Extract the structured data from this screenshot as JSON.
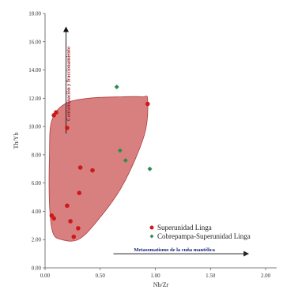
{
  "chart_data": {
    "type": "scatter",
    "xlabel": "Nb/Zr",
    "ylabel": "Th/Yb",
    "xlim": [
      0,
      2.1
    ],
    "ylim": [
      0,
      18
    ],
    "x_ticks": [
      "0.00",
      "0.50",
      "1.00",
      "1.50",
      "2.00"
    ],
    "y_ticks": [
      "0.00",
      "2.00",
      "4.00",
      "6.00",
      "8.00",
      "10.00",
      "12.00",
      "14.00",
      "16.00",
      "18.00"
    ],
    "grid": false,
    "legend_position": "bottom-right",
    "series": [
      {
        "name": "Superunidad Linga",
        "color": "#cc1a1a",
        "marker": "circle",
        "points": [
          {
            "x": 0.08,
            "y": 10.8
          },
          {
            "x": 0.1,
            "y": 11.0
          },
          {
            "x": 0.2,
            "y": 9.9
          },
          {
            "x": 0.06,
            "y": 3.7
          },
          {
            "x": 0.08,
            "y": 3.5
          },
          {
            "x": 0.2,
            "y": 4.4
          },
          {
            "x": 0.23,
            "y": 3.3
          },
          {
            "x": 0.3,
            "y": 2.8
          },
          {
            "x": 0.26,
            "y": 2.2
          },
          {
            "x": 0.31,
            "y": 5.3
          },
          {
            "x": 0.32,
            "y": 7.1
          },
          {
            "x": 0.43,
            "y": 6.9
          },
          {
            "x": 0.93,
            "y": 11.6
          }
        ]
      },
      {
        "name": "Cobrepampa-Superunidad Linga",
        "color": "#2e8b57",
        "marker": "diamond",
        "points": [
          {
            "x": 0.65,
            "y": 12.8
          },
          {
            "x": 0.68,
            "y": 8.3
          },
          {
            "x": 0.73,
            "y": 7.6
          },
          {
            "x": 0.95,
            "y": 7.0
          }
        ]
      }
    ],
    "field": {
      "fill": "#cd5c5c",
      "points": [
        {
          "x": 0.06,
          "y": 10.4
        },
        {
          "x": 0.18,
          "y": 11.6
        },
        {
          "x": 0.4,
          "y": 12.0
        },
        {
          "x": 0.7,
          "y": 12.1
        },
        {
          "x": 0.88,
          "y": 12.1
        },
        {
          "x": 0.93,
          "y": 11.9
        },
        {
          "x": 0.9,
          "y": 9.4
        },
        {
          "x": 0.7,
          "y": 5.8
        },
        {
          "x": 0.46,
          "y": 3.2
        },
        {
          "x": 0.3,
          "y": 2.0
        },
        {
          "x": 0.15,
          "y": 2.0
        },
        {
          "x": 0.07,
          "y": 2.5
        },
        {
          "x": 0.04,
          "y": 4.5
        },
        {
          "x": 0.04,
          "y": 8.0
        }
      ]
    },
    "annotations": [
      {
        "text": "Contaminación y fraccionamiento",
        "color": "#9b111e",
        "from": {
          "x": 0.19,
          "y": 9.5
        },
        "to": {
          "x": 0.19,
          "y": 17.0
        },
        "orientation": "vertical"
      },
      {
        "text": "Metasomatismo de la cuña mantélica",
        "color": "#1a237e",
        "from": {
          "x": 0.62,
          "y": 1.0
        },
        "to": {
          "x": 1.84,
          "y": 1.0
        },
        "orientation": "horizontal"
      }
    ]
  }
}
